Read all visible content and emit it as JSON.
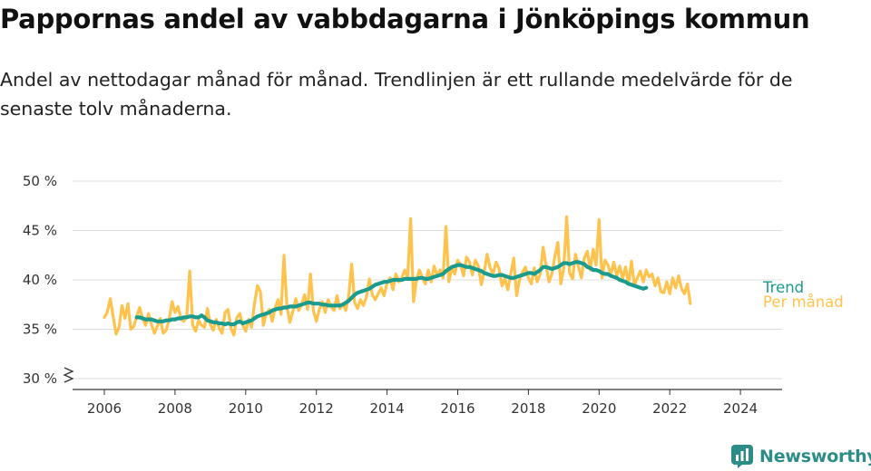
{
  "header": {
    "title": "Pappornas andel av vabbdagarna i Jönköpings kommun",
    "subtitle": "Andel av nettodagar månad för månad. Trendlinjen är ett rullande medelvärde för de senaste tolv månaderna."
  },
  "brand": {
    "name": "Newsworthy",
    "icon": "newsworthy-logo-icon",
    "color": "#2c8c86"
  },
  "chart_data": {
    "type": "line",
    "y_axis": {
      "min": 30,
      "max": 50,
      "ticks": [
        30,
        35,
        40,
        45,
        50
      ],
      "tick_labels": [
        "30 %",
        "35 %",
        "40 %",
        "45 %",
        "50 %"
      ],
      "broken_axis": true
    },
    "x_axis": {
      "min": 2005.5,
      "max": 2025.3,
      "ticks": [
        2006,
        2008,
        2010,
        2012,
        2014,
        2016,
        2018,
        2020,
        2022,
        2024
      ],
      "tick_labels": [
        "2006",
        "2008",
        "2010",
        "2012",
        "2014",
        "2016",
        "2018",
        "2020",
        "2022",
        "2024"
      ]
    },
    "grid": true,
    "series": [
      {
        "name": "Per månad",
        "color": "#ffc34d",
        "start": 2006.0,
        "step": 0.08333,
        "values": [
          36.2,
          36.7,
          38.1,
          36.3,
          34.5,
          35.2,
          37.4,
          36.1,
          37.6,
          35.0,
          35.3,
          36.3,
          37.2,
          36.1,
          35.4,
          36.6,
          35.5,
          34.6,
          35.3,
          36.1,
          34.6,
          34.9,
          36.0,
          37.8,
          36.7,
          37.3,
          36.1,
          35.8,
          36.4,
          40.9,
          35.4,
          34.8,
          35.9,
          35.4,
          35.2,
          37.1,
          35.5,
          34.9,
          36.0,
          35.1,
          34.6,
          36.7,
          37.0,
          35.1,
          34.4,
          36.2,
          36.6,
          35.4,
          34.8,
          36.0,
          35.2,
          37.6,
          39.4,
          38.8,
          35.4,
          36.6,
          37.0,
          35.8,
          37.2,
          38.0,
          36.5,
          42.5,
          37.3,
          35.7,
          36.8,
          38.1,
          36.9,
          37.5,
          38.5,
          37.0,
          40.6,
          36.9,
          35.8,
          37.0,
          37.8,
          36.7,
          38.0,
          37.3,
          36.9,
          38.4,
          37.1,
          37.6,
          36.9,
          38.4,
          41.6,
          37.7,
          37.1,
          38.0,
          37.4,
          38.3,
          40.1,
          38.5,
          38.0,
          38.6,
          39.2,
          38.4,
          39.7,
          40.2,
          39.0,
          40.6,
          39.8,
          40.2,
          41.0,
          40.2,
          46.2,
          37.8,
          40.0,
          41.0,
          40.2,
          39.6,
          41.0,
          39.8,
          41.4,
          40.4,
          41.0,
          40.2,
          45.4,
          39.8,
          41.2,
          40.6,
          42.0,
          41.5,
          40.4,
          42.3,
          41.8,
          40.5,
          42.0,
          41.4,
          39.5,
          40.8,
          42.6,
          41.2,
          40.6,
          41.8,
          41.2,
          39.4,
          40.1,
          39.0,
          40.6,
          42.2,
          38.4,
          40.0,
          40.8,
          41.3,
          40.2,
          39.6,
          41.2,
          39.8,
          40.6,
          43.3,
          41.4,
          39.8,
          40.6,
          42.4,
          43.8,
          39.6,
          41.1,
          46.4,
          40.7,
          40.1,
          42.6,
          41.3,
          40.2,
          42.2,
          42.9,
          41.0,
          43.1,
          41.5,
          46.1,
          40.2,
          42.0,
          41.5,
          40.6,
          41.8,
          40.4,
          41.4,
          40.1,
          41.3,
          39.6,
          41.9,
          39.4,
          40.2,
          40.9,
          39.8,
          41.0,
          40.3,
          40.6,
          39.4,
          40.2,
          38.8,
          38.7,
          39.8,
          38.6,
          40.2,
          39.2,
          40.4,
          39.1,
          38.6,
          39.6,
          37.6
        ]
      },
      {
        "name": "Trend",
        "color": "#1a9b8e",
        "start": 2006.917,
        "step": 0.08333,
        "values": [
          36.2,
          36.2,
          36.1,
          36.0,
          36.0,
          36.0,
          35.9,
          35.8,
          35.8,
          35.8,
          35.9,
          35.9,
          36.0,
          36.0,
          36.1,
          36.1,
          36.2,
          36.2,
          36.3,
          36.3,
          36.2,
          36.2,
          36.4,
          36.2,
          35.9,
          35.8,
          35.7,
          35.7,
          35.6,
          35.6,
          35.5,
          35.6,
          35.5,
          35.5,
          35.7,
          35.8,
          35.6,
          35.7,
          35.8,
          35.9,
          36.1,
          36.3,
          36.4,
          36.5,
          36.6,
          36.7,
          36.9,
          37.0,
          37.1,
          37.1,
          37.2,
          37.2,
          37.3,
          37.3,
          37.3,
          37.4,
          37.5,
          37.6,
          37.7,
          37.7,
          37.6,
          37.6,
          37.6,
          37.5,
          37.5,
          37.4,
          37.4,
          37.4,
          37.4,
          37.4,
          37.5,
          37.7,
          37.9,
          38.2,
          38.5,
          38.7,
          38.8,
          38.9,
          39.0,
          39.1,
          39.3,
          39.5,
          39.6,
          39.7,
          39.8,
          39.8,
          39.9,
          40.0,
          40.0,
          40.0,
          40.0,
          40.1,
          40.1,
          40.1,
          40.1,
          40.1,
          40.2,
          40.2,
          40.1,
          40.1,
          40.2,
          40.3,
          40.4,
          40.5,
          40.6,
          40.9,
          41.1,
          41.3,
          41.4,
          41.5,
          41.5,
          41.4,
          41.3,
          41.3,
          41.2,
          41.1,
          41.0,
          40.9,
          40.7,
          40.6,
          40.5,
          40.4,
          40.4,
          40.5,
          40.5,
          40.4,
          40.3,
          40.2,
          40.2,
          40.3,
          40.4,
          40.5,
          40.6,
          40.7,
          40.7,
          40.6,
          40.8,
          41.0,
          41.3,
          41.3,
          41.2,
          41.1,
          41.2,
          41.3,
          41.5,
          41.7,
          41.7,
          41.6,
          41.7,
          41.8,
          41.8,
          41.7,
          41.6,
          41.3,
          41.2,
          41.0,
          41.0,
          40.9,
          40.7,
          40.6,
          40.6,
          40.4,
          40.3,
          40.2,
          40.0,
          39.9,
          39.8,
          39.6,
          39.5,
          39.4,
          39.3,
          39.2,
          39.1,
          39.2
        ]
      }
    ]
  }
}
